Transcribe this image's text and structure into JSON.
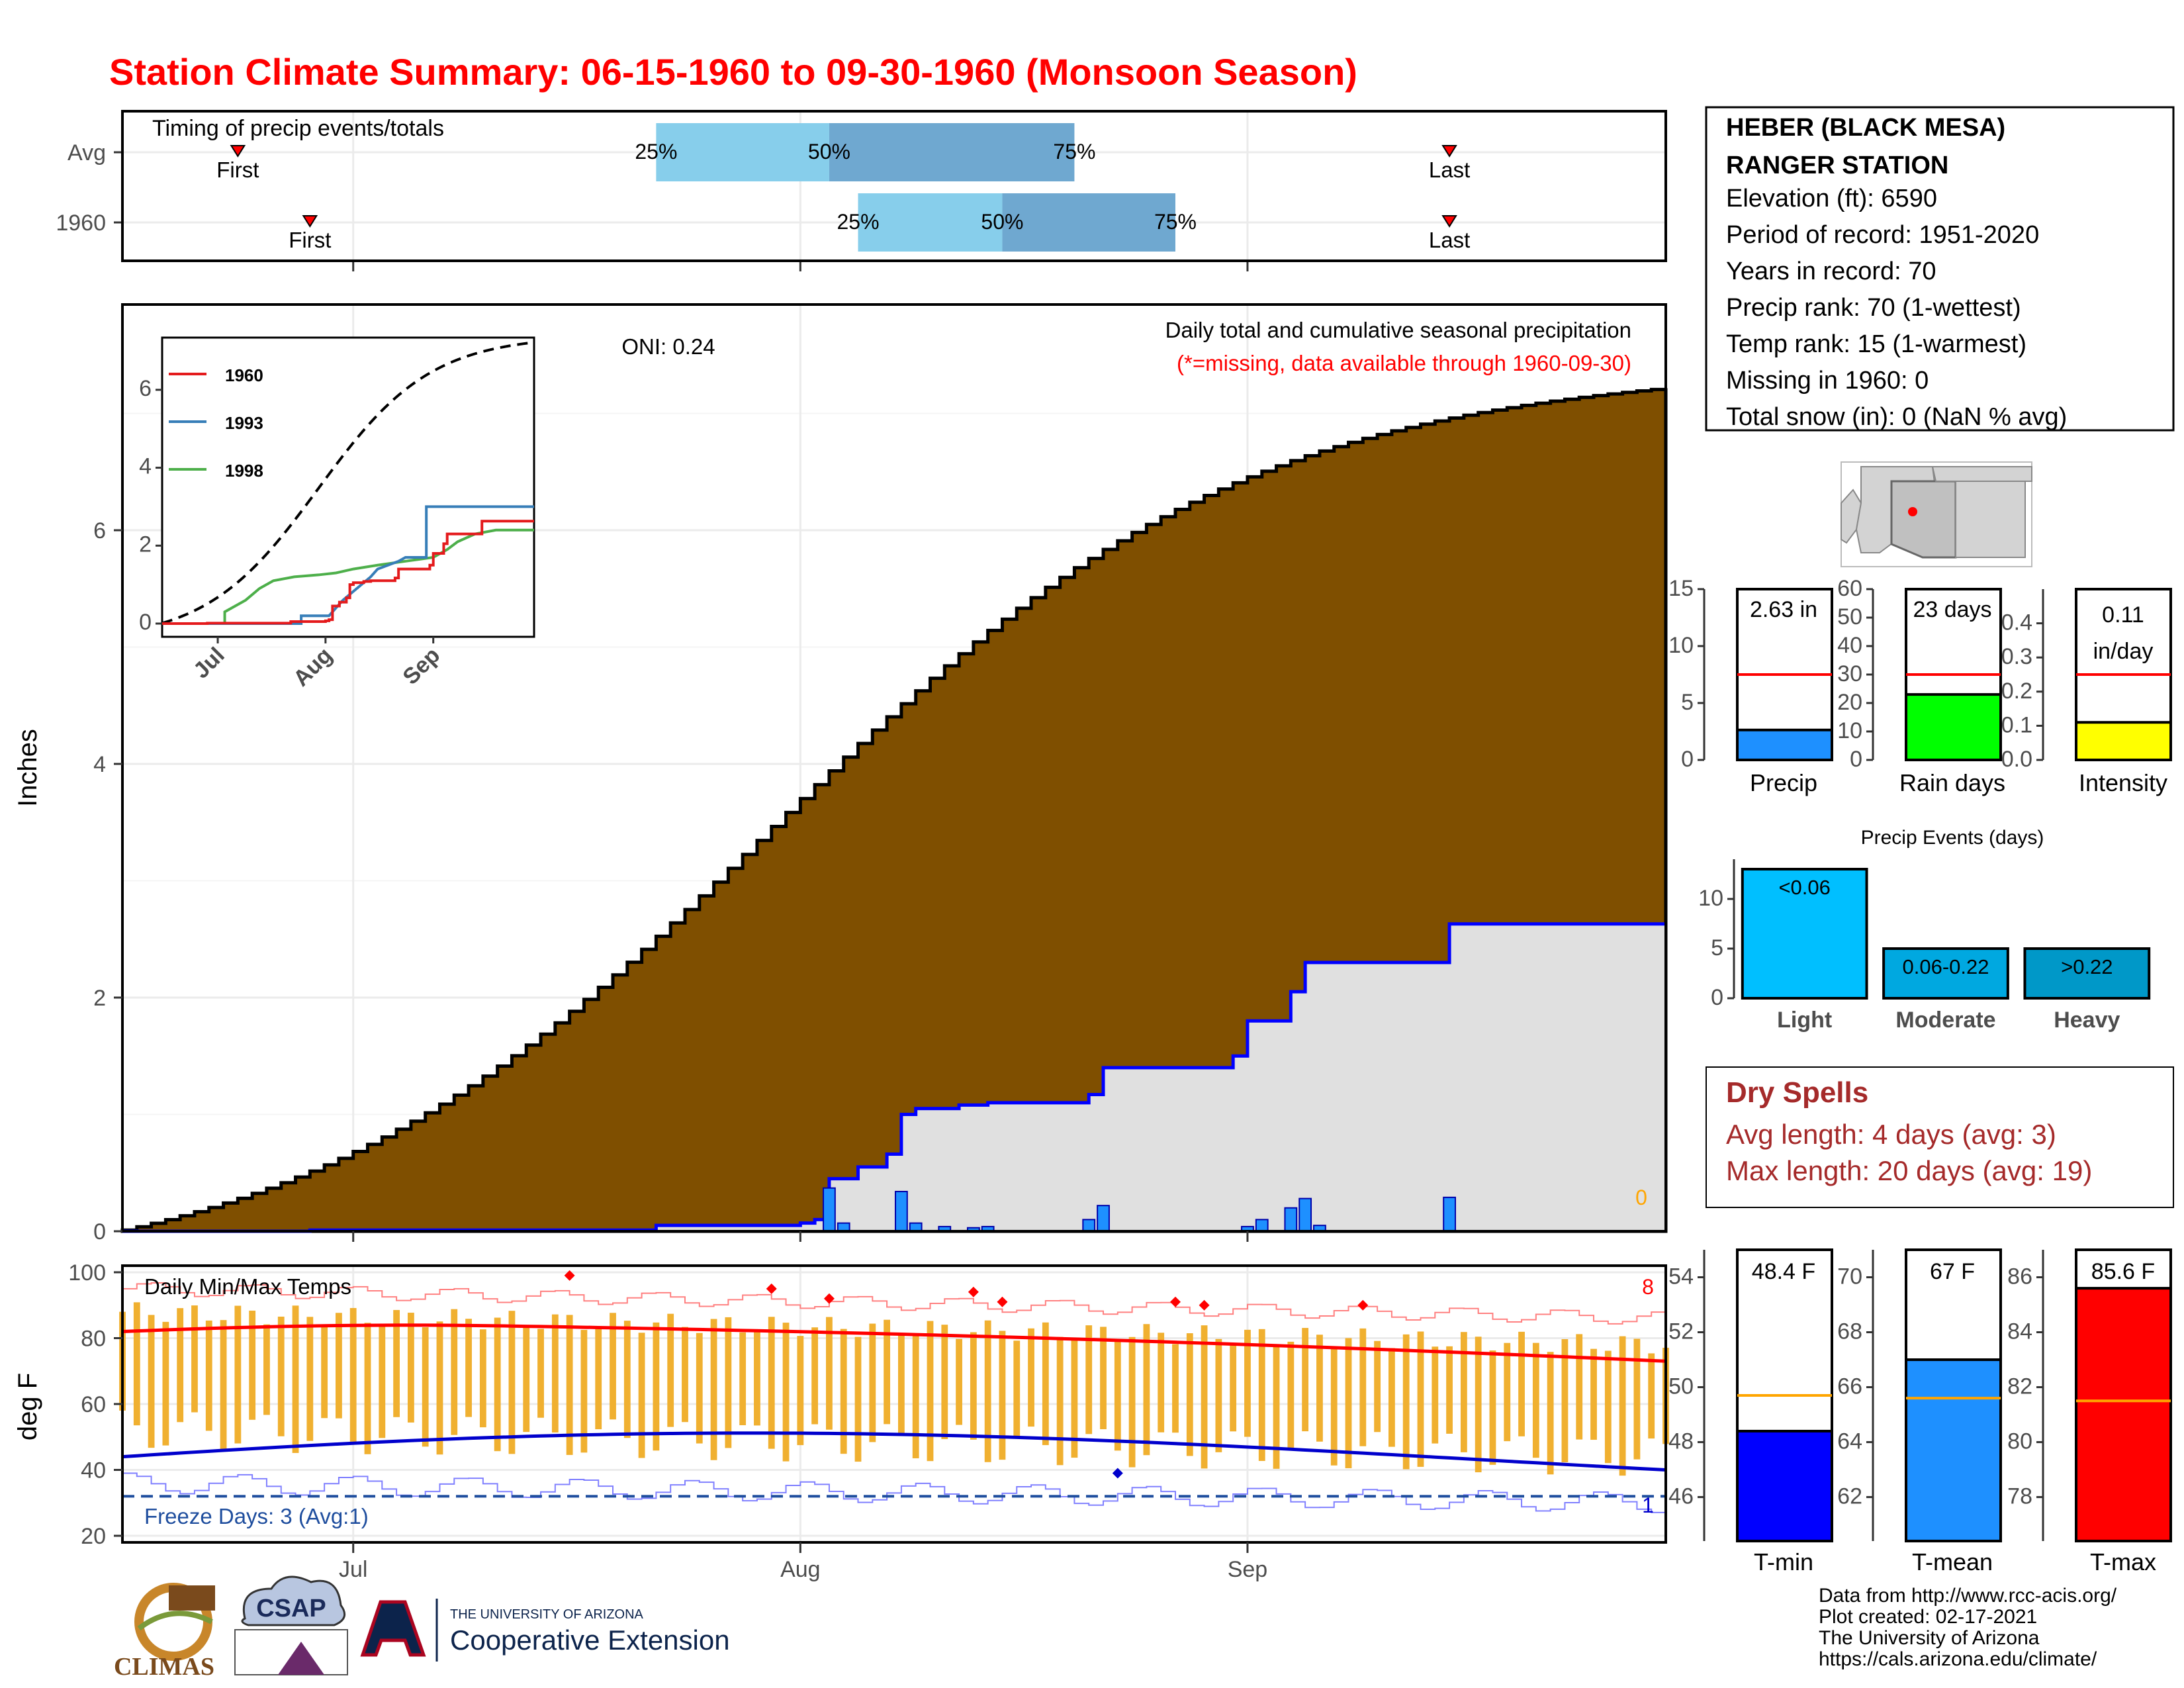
{
  "title": "Station Climate Summary: 06-15-1960 to 09-30-1960 (Monsoon Season)",
  "station": {
    "name_line1": "HEBER (BLACK MESA)",
    "name_line2": "RANGER STATION",
    "elevation": "Elevation (ft): 6590",
    "period": "Period of record: 1951-2020",
    "years": "Years in record: 70",
    "precip_rank": "Precip rank: 70 (1-wettest)",
    "temp_rank": "Temp rank: 15 (1-warmest)",
    "missing": "Missing in 1960: 0",
    "snow": "Total snow (in): 0 (NaN % avg)"
  },
  "colors": {
    "title": "#ff0000",
    "cum_fill": "#7f4f00",
    "year_fill": "#e0e0e0",
    "year_line": "#0000ff",
    "daily_bar": "#1e90ff",
    "q_light": "#87ceeb",
    "q_dark": "#6fa8d0",
    "temp_bar": "#f0b030",
    "tmax": "#ff0000",
    "tmin": "#0000cc",
    "dry_spell": "#a52a2a"
  },
  "chart_data": [
    {
      "type": "timeline",
      "title": "Timing of precip events/totals",
      "rows": [
        {
          "label": "Avg",
          "first": "06-23",
          "q25": "07-22",
          "q50": "08-03",
          "q75": "08-20",
          "last": "09-15",
          "first_label": "First",
          "last_label": "Last",
          "q25_label": "25%",
          "q50_label": "50%",
          "q75_label": "75%"
        },
        {
          "label": "1960",
          "first": "06-28",
          "q25": "08-05",
          "q50": "08-15",
          "q75": "08-27",
          "last": "09-15",
          "first_label": "First",
          "last_label": "Last",
          "q25_label": "25%",
          "q50_label": "50%",
          "q75_label": "75%"
        }
      ]
    },
    {
      "type": "area",
      "title": "Daily total and cumulative seasonal precipitation",
      "subtitle": "(*=missing, data available through 1960-09-30)",
      "ylabel": "Inches",
      "ylim": [
        0,
        8
      ],
      "yticks": [
        0,
        2,
        4,
        6
      ],
      "xticks": [
        "Jul",
        "Aug",
        "Sep"
      ],
      "oni": "ONI: 0.24",
      "missing_count": "0",
      "average_cumulative_end": 7.2,
      "year_cumulative_steps": [
        {
          "date": "06-15",
          "value": 0.0
        },
        {
          "date": "06-28",
          "value": 0.01
        },
        {
          "date": "07-22",
          "value": 0.05
        },
        {
          "date": "08-01",
          "value": 0.07
        },
        {
          "date": "08-02",
          "value": 0.1
        },
        {
          "date": "08-03",
          "value": 0.45
        },
        {
          "date": "08-05",
          "value": 0.55
        },
        {
          "date": "08-07",
          "value": 0.66
        },
        {
          "date": "08-08",
          "value": 1.0
        },
        {
          "date": "08-09",
          "value": 1.05
        },
        {
          "date": "08-12",
          "value": 1.08
        },
        {
          "date": "08-14",
          "value": 1.1
        },
        {
          "date": "08-21",
          "value": 1.17
        },
        {
          "date": "08-22",
          "value": 1.4
        },
        {
          "date": "08-31",
          "value": 1.5
        },
        {
          "date": "09-01",
          "value": 1.8
        },
        {
          "date": "09-04",
          "value": 2.05
        },
        {
          "date": "09-05",
          "value": 2.3
        },
        {
          "date": "09-15",
          "value": 2.63
        }
      ],
      "daily_bars": [
        {
          "date": "08-03",
          "value": 0.37
        },
        {
          "date": "08-04",
          "value": 0.07
        },
        {
          "date": "08-08",
          "value": 0.34
        },
        {
          "date": "08-09",
          "value": 0.07
        },
        {
          "date": "08-11",
          "value": 0.04
        },
        {
          "date": "08-13",
          "value": 0.03
        },
        {
          "date": "08-14",
          "value": 0.04
        },
        {
          "date": "08-21",
          "value": 0.1
        },
        {
          "date": "08-22",
          "value": 0.22
        },
        {
          "date": "09-01",
          "value": 0.04
        },
        {
          "date": "09-02",
          "value": 0.1
        },
        {
          "date": "09-04",
          "value": 0.2
        },
        {
          "date": "09-05",
          "value": 0.28
        },
        {
          "date": "09-06",
          "value": 0.05
        },
        {
          "date": "09-15",
          "value": 0.29
        }
      ],
      "inset": {
        "yticks": [
          0,
          2,
          4,
          6
        ],
        "xticks": [
          "Jul",
          "Aug",
          "Sep"
        ],
        "series": [
          {
            "name": "1960",
            "color": "#e41a1c"
          },
          {
            "name": "1993",
            "color": "#377eb8"
          },
          {
            "name": "1998",
            "color": "#4daf4a"
          }
        ]
      }
    },
    {
      "type": "bar",
      "title": "Daily Min/Max Temps",
      "ylabel": "deg F",
      "ylim": [
        18,
        102
      ],
      "yticks": [
        20,
        40,
        60,
        80,
        100
      ],
      "xticks": [
        "Jul",
        "Aug",
        "Sep"
      ],
      "freeze_days": "Freeze Days: 3 (Avg:1)",
      "record_high_count": "8",
      "record_low_count": "1",
      "freeze_line": 32,
      "avg_tmax_start": 82,
      "avg_tmax_end": 73,
      "avg_tmin_start": 44,
      "avg_tmin_end": 40
    },
    {
      "type": "bar",
      "title": "Precip",
      "value_label": "2.63 in",
      "value": 2.63,
      "avg": 7.5,
      "ylim": [
        0,
        15
      ],
      "yticks": [
        0,
        5,
        10,
        15
      ],
      "color": "#1e90ff"
    },
    {
      "type": "bar",
      "title": "Rain days",
      "value_label": "23 days",
      "value": 23,
      "avg": 30,
      "ylim": [
        0,
        60
      ],
      "yticks": [
        0,
        10,
        20,
        30,
        40,
        50,
        60
      ],
      "color": "#00ff00"
    },
    {
      "type": "bar",
      "title": "Intensity",
      "value_label_line1": "0.11",
      "value_label_line2": "in/day",
      "value": 0.11,
      "avg": 0.25,
      "ylim": [
        0,
        0.5
      ],
      "yticks": [
        "0.0",
        "0.1",
        "0.2",
        "0.3",
        "0.4"
      ],
      "color": "#ffff00"
    },
    {
      "type": "bar",
      "title": "Precip Events (days)",
      "categories": [
        "Light",
        "Moderate",
        "Heavy"
      ],
      "bar_labels": [
        "<0.06",
        "0.06-0.22",
        ">0.22"
      ],
      "values": [
        13,
        5,
        5
      ],
      "ylim": [
        0,
        14
      ],
      "yticks": [
        0,
        5,
        10
      ],
      "colors": [
        "#00bfff",
        "#00a8e0",
        "#0098c8"
      ]
    },
    {
      "type": "bar",
      "title": "T-min",
      "value_label": "48.4 F",
      "value": 48.4,
      "avg": 49.7,
      "ylim": [
        44.4,
        55
      ],
      "yticks": [
        46,
        48,
        50,
        52,
        54
      ],
      "color": "#0000ff"
    },
    {
      "type": "bar",
      "title": "T-mean",
      "value_label": "67 F",
      "value": 67,
      "avg": 65.6,
      "ylim": [
        60.4,
        71
      ],
      "yticks": [
        62,
        64,
        66,
        68,
        70
      ],
      "color": "#1e90ff"
    },
    {
      "type": "bar",
      "title": "T-max",
      "value_label": "85.6 F",
      "value": 85.6,
      "avg": 81.5,
      "ylim": [
        76.4,
        87
      ],
      "yticks": [
        78,
        80,
        82,
        84,
        86
      ],
      "color": "#ff0000"
    }
  ],
  "dry_spells": {
    "title": "Dry Spells",
    "avg_length": "Avg length: 4 days (avg: 3)",
    "max_length": "Max length: 20 days (avg: 19)"
  },
  "credits": {
    "line1": "Data from http://www.rcc-acis.org/",
    "line2": "Plot created: 02-17-2021",
    "line3": "The University of Arizona",
    "line4": "https://cals.arizona.edu/climate/"
  },
  "logos": {
    "climas": "CLIMAS",
    "csap": "CSAP",
    "ua_small": "THE UNIVERSITY OF ARIZONA",
    "ua_ext": "Cooperative Extension"
  }
}
